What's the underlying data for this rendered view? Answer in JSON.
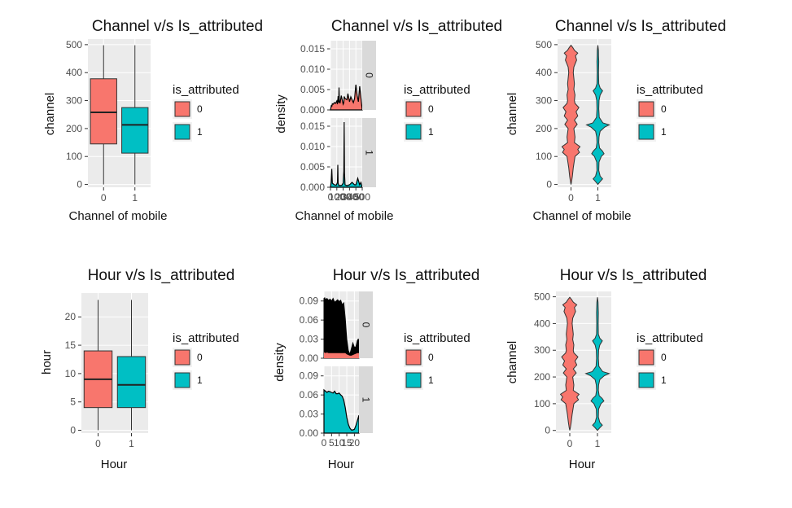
{
  "chart_data": [
    {
      "id": "p1",
      "type": "boxplot",
      "title": "Channel v/s Is_attributed",
      "xlabel": "Channel of mobile",
      "ylabel": "channel",
      "categories": [
        "0",
        "1"
      ],
      "ylim": [
        -10,
        520
      ],
      "yticks": [
        0,
        100,
        200,
        300,
        400,
        500
      ],
      "boxes": [
        {
          "min": 0,
          "q1": 145,
          "median": 258,
          "q3": 378,
          "max": 498
        },
        {
          "min": 0,
          "q1": 112,
          "median": 213,
          "q3": 275,
          "max": 498
        }
      ],
      "legend": {
        "title": "is_attributed",
        "labels": [
          "0",
          "1"
        ]
      }
    },
    {
      "id": "p2",
      "type": "density_facet",
      "title": "Channel v/s Is_attributed",
      "xlabel": "Channel of mobile",
      "ylabel": "density",
      "xtick_labels": [
        "0",
        "100",
        "200",
        "300",
        "400",
        "500"
      ],
      "xlim": [
        0,
        500
      ],
      "ylim": [
        0,
        0.017
      ],
      "yticks": [
        "0.000",
        "0.005",
        "0.010",
        "0.015"
      ],
      "facets": [
        {
          "strip": "0",
          "x": [
            0,
            15,
            20,
            30,
            45,
            60,
            80,
            100,
            110,
            120,
            130,
            135,
            140,
            150,
            170,
            200,
            210,
            215,
            230,
            260,
            275,
            300,
            320,
            340,
            360,
            380,
            400,
            420,
            440,
            460,
            480,
            500
          ],
          "y": [
            0,
            0.0012,
            0.0008,
            0.0015,
            0.0014,
            0.0018,
            0.0016,
            0.0022,
            0.0014,
            0.0034,
            0.0018,
            0.0055,
            0.0022,
            0.0016,
            0.0035,
            0.0014,
            0.0018,
            0.0033,
            0.0028,
            0.0025,
            0.004,
            0.002,
            0.0032,
            0.0025,
            0.0018,
            0.0028,
            0.0062,
            0.0035,
            0.002,
            0.0058,
            0.003,
            0
          ]
        },
        {
          "strip": "1",
          "x": [
            0,
            10,
            20,
            30,
            60,
            90,
            100,
            110,
            115,
            120,
            130,
            150,
            180,
            200,
            210,
            215,
            220,
            230,
            260,
            300,
            340,
            380,
            400,
            430,
            460,
            480,
            500
          ],
          "y": [
            0,
            0.0012,
            0.0045,
            0.001,
            0.0006,
            0.0005,
            0.0008,
            0.0012,
            0.0055,
            0.001,
            0.0005,
            0.0004,
            0.0005,
            0.001,
            0.004,
            0.016,
            0.0035,
            0.0006,
            0.0004,
            0.0006,
            0.0012,
            0.0006,
            0.0006,
            0.0022,
            0.0006,
            0.0012,
            0
          ]
        }
      ],
      "legend": {
        "title": "is_attributed",
        "labels": [
          "0",
          "1"
        ]
      }
    },
    {
      "id": "p3",
      "type": "violin",
      "title": "Channel v/s Is_attributed",
      "xlabel": "Channel of mobile",
      "ylabel": "channel",
      "categories": [
        "0",
        "1"
      ],
      "ylim": [
        -10,
        520
      ],
      "yticks": [
        0,
        100,
        200,
        300,
        400,
        500
      ],
      "violins": [
        {
          "y": [
            0,
            10,
            30,
            60,
            100,
            115,
            125,
            135,
            150,
            170,
            200,
            215,
            230,
            245,
            260,
            275,
            290,
            300,
            320,
            340,
            360,
            380,
            400,
            420,
            445,
            460,
            470,
            480,
            490,
            498
          ],
          "w": [
            0,
            0.05,
            0.12,
            0.2,
            0.35,
            0.75,
            0.6,
            0.8,
            0.3,
            0.35,
            0.25,
            0.55,
            0.3,
            0.6,
            0.45,
            0.7,
            0.35,
            0.3,
            0.35,
            0.25,
            0.3,
            0.25,
            0.2,
            0.25,
            0.5,
            0.4,
            0.6,
            0.3,
            0.15,
            0
          ]
        },
        {
          "y": [
            0,
            10,
            20,
            30,
            50,
            80,
            100,
            110,
            120,
            130,
            150,
            170,
            190,
            205,
            213,
            220,
            240,
            270,
            300,
            320,
            335,
            345,
            360,
            400,
            440,
            460,
            480,
            498
          ],
          "w": [
            0,
            0.2,
            0.42,
            0.2,
            0.08,
            0.1,
            0.3,
            0.55,
            0.4,
            0.15,
            0.08,
            0.1,
            0.2,
            0.6,
            1.0,
            0.45,
            0.12,
            0.08,
            0.1,
            0.2,
            0.42,
            0.2,
            0.08,
            0.06,
            0.08,
            0.06,
            0.05,
            0
          ]
        }
      ],
      "legend": {
        "title": "is_attributed",
        "labels": [
          "0",
          "1"
        ]
      }
    },
    {
      "id": "p4",
      "type": "boxplot",
      "title": "Hour v/s Is_attributed",
      "xlabel": "Hour",
      "ylabel": "hour",
      "categories": [
        "0",
        "1"
      ],
      "ylim": [
        -0.5,
        24.2
      ],
      "yticks": [
        0,
        5,
        10,
        15,
        20
      ],
      "boxes": [
        {
          "min": 0,
          "q1": 4,
          "median": 9,
          "q3": 14,
          "max": 23
        },
        {
          "min": 0,
          "q1": 4,
          "median": 8,
          "q3": 13,
          "max": 23
        }
      ],
      "legend": {
        "title": "is_attributed",
        "labels": [
          "0",
          "1"
        ]
      }
    },
    {
      "id": "p5",
      "type": "density_facet",
      "title": "Hour v/s Is_attributed",
      "xlabel": "Hour",
      "ylabel": "density",
      "xtick_labels": [
        "0",
        "5",
        "10",
        "15",
        "20"
      ],
      "xlim": [
        0,
        23
      ],
      "ylim": [
        0,
        0.105
      ],
      "yticks": [
        "0.00",
        "0.03",
        "0.06",
        "0.09"
      ],
      "facets": [
        {
          "strip": "0",
          "x": [
            0,
            0.5,
            1,
            2,
            3,
            4,
            5,
            6,
            7,
            8,
            9,
            10,
            11,
            12,
            13,
            14,
            15,
            16,
            17,
            18,
            19,
            20,
            21,
            22,
            22.5,
            23
          ],
          "y": [
            0.094,
            0.095,
            0.092,
            0.094,
            0.091,
            0.093,
            0.09,
            0.094,
            0.088,
            0.09,
            0.092,
            0.089,
            0.091,
            0.084,
            0.087,
            0.062,
            0.03,
            0.012,
            0.006,
            0.015,
            0.024,
            0.017,
            0.018,
            0.028,
            0.03,
            0.028
          ],
          "y_low": [
            0.009,
            0.009,
            0.008,
            0.009,
            0.008,
            0.008,
            0.008,
            0.008,
            0.008,
            0.008,
            0.008,
            0.008,
            0.008,
            0.008,
            0.008,
            0.008,
            0.006,
            0.005,
            0.004,
            0.004,
            0.005,
            0.006,
            0.007,
            0.008,
            0.008,
            0.008
          ]
        },
        {
          "strip": "1",
          "x": [
            0,
            1,
            2,
            3,
            4,
            5,
            6,
            7,
            8,
            9,
            10,
            11,
            12,
            13,
            14,
            15,
            16,
            17,
            18,
            19,
            20,
            21,
            22,
            23
          ],
          "y": [
            0.068,
            0.066,
            0.064,
            0.066,
            0.065,
            0.064,
            0.063,
            0.066,
            0.062,
            0.062,
            0.063,
            0.06,
            0.058,
            0.052,
            0.04,
            0.025,
            0.014,
            0.008,
            0.005,
            0.005,
            0.006,
            0.012,
            0.02,
            0.028
          ]
        }
      ],
      "legend": {
        "title": "is_attributed",
        "labels": [
          "0",
          "1"
        ]
      }
    },
    {
      "id": "p6",
      "type": "violin",
      "title": "Hour v/s Is_attributed",
      "xlabel": "Hour",
      "ylabel": "channel",
      "categories": [
        "0",
        "1"
      ],
      "ylim": [
        -10,
        520
      ],
      "yticks": [
        0,
        100,
        200,
        300,
        400,
        500
      ],
      "violins": [
        {
          "y": [
            0,
            10,
            30,
            60,
            100,
            115,
            125,
            135,
            150,
            170,
            200,
            215,
            230,
            245,
            260,
            275,
            290,
            300,
            320,
            340,
            360,
            380,
            400,
            420,
            445,
            460,
            470,
            480,
            490,
            498
          ],
          "w": [
            0,
            0.05,
            0.12,
            0.2,
            0.35,
            0.75,
            0.6,
            0.8,
            0.3,
            0.35,
            0.25,
            0.55,
            0.3,
            0.6,
            0.45,
            0.7,
            0.35,
            0.3,
            0.35,
            0.25,
            0.3,
            0.25,
            0.2,
            0.25,
            0.5,
            0.4,
            0.6,
            0.3,
            0.15,
            0
          ]
        },
        {
          "y": [
            0,
            10,
            20,
            30,
            50,
            80,
            100,
            110,
            120,
            130,
            150,
            170,
            190,
            205,
            213,
            220,
            240,
            270,
            300,
            320,
            335,
            345,
            360,
            400,
            440,
            460,
            480,
            498
          ],
          "w": [
            0,
            0.2,
            0.42,
            0.2,
            0.08,
            0.1,
            0.3,
            0.55,
            0.4,
            0.15,
            0.08,
            0.1,
            0.2,
            0.6,
            1.0,
            0.45,
            0.12,
            0.08,
            0.1,
            0.2,
            0.42,
            0.2,
            0.08,
            0.06,
            0.08,
            0.06,
            0.05,
            0
          ]
        }
      ],
      "legend": {
        "title": "is_attributed",
        "labels": [
          "0",
          "1"
        ]
      }
    }
  ],
  "colors": {
    "group0": "#F8766D",
    "group1": "#00BFC4",
    "panel": "#EBEBEB",
    "grid": "#FFFFFF",
    "strip": "#D9D9D9",
    "stroke": "#000000",
    "tick_text": "#4D4D4D"
  }
}
